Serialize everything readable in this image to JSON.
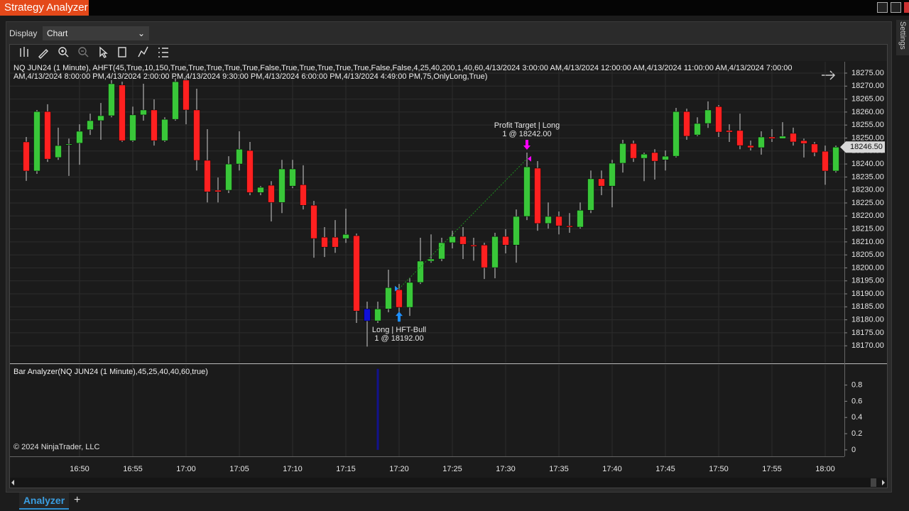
{
  "ui": {
    "window_title": "Strategy Analyzer",
    "display_label": "Display",
    "display_value": "Chart",
    "settings_tab": "Settings",
    "tab_label": "Analyzer",
    "add_tab": "+",
    "copyright": "© 2024 NinjaTrader, LLC"
  },
  "chart_data": {
    "type": "candlestick",
    "title": "NQ JUN24 (1 Minute), AHFT(45,True,10,150,True,True,True,True,True,False,True,True,True,True,True,False,False,4,25,40,200,1,40,60,4/13/2024 3:00:00 AM,4/13/2024 12:00:00 AM,4/13/2024 11:00:00 AM,4/13/2024 7:00:00 AM,4/13/2024 8:00:00 PM,4/13/2024 2:00:00 PM,4/13/2024 9:30:00 PM,4/13/2024 6:00:00 PM,4/13/2024 4:49:00 PM,75,OnlyLong,True)",
    "x": [
      null,
      null,
      null,
      null,
      null,
      "16:50",
      null,
      null,
      null,
      null,
      "16:55",
      null,
      null,
      null,
      null,
      "17:00",
      null,
      null,
      null,
      null,
      "17:05",
      null,
      null,
      null,
      null,
      "17:10",
      null,
      null,
      null,
      null,
      "17:15",
      null,
      null,
      null,
      null,
      "17:20",
      null,
      null,
      null,
      null,
      "17:25",
      null,
      null,
      null,
      null,
      "17:30",
      null,
      null,
      null,
      null,
      "17:35",
      null,
      null,
      null,
      null,
      "17:40",
      null,
      null,
      null,
      null,
      "17:45",
      null,
      null,
      null,
      null,
      "17:50",
      null,
      null,
      null,
      null,
      "17:55",
      null,
      null,
      null,
      null,
      "18:00",
      null
    ],
    "open": [
      18248.5,
      18237.3,
      18260.2,
      18242.5,
      18247.3,
      18248.0,
      18253.2,
      18256.7,
      18258.6,
      18270.4,
      18249.0,
      18258.9,
      18260.8,
      18249.0,
      18257.2,
      18272.3,
      18260.8,
      18241.4,
      18229.9,
      18229.9,
      18240.0,
      18245.2,
      18229.0,
      18231.8,
      18225.2,
      18231.5,
      18232.0,
      18224.1,
      18211.8,
      18211.8,
      18211.3,
      18212.4,
      18184.2,
      18179.6,
      18184.2,
      18191.6,
      18184.8,
      18194.4,
      18202.6,
      18203.4,
      18209.7,
      18212.1,
      18208.8,
      18208.8,
      18200.1,
      18212.1,
      18208.8,
      18219.8,
      18238.4,
      18217.1,
      18219.8,
      18216.2,
      18215.7,
      18222.2,
      18234.3,
      18231.5,
      18240.3,
      18247.9,
      18242.2,
      18244.4,
      18241.6,
      18243.0,
      18260.2,
      18251.2,
      18255.6,
      18262.1,
      18252.9,
      18252.9,
      18247.1,
      18246.3,
      18250.4,
      18249.8,
      18251.8,
      18249.0,
      18247.7,
      18244.9,
      18237.3
    ],
    "high": [
      18250.4,
      18260.8,
      18263.0,
      18254.0,
      18249.8,
      18255.3,
      18259.4,
      18263.5,
      18272.3,
      18271.7,
      18262.1,
      18270.9,
      18264.9,
      18258.0,
      18273.1,
      18273.1,
      18269.0,
      18253.4,
      18234.8,
      18243.0,
      18252.6,
      18248.5,
      18231.5,
      18233.4,
      18241.6,
      18241.6,
      18239.5,
      18225.8,
      18215.7,
      18218.4,
      18222.8,
      18213.2,
      18187.0,
      18187.0,
      18199.3,
      18193.8,
      18196.0,
      18211.6,
      18212.9,
      18211.6,
      18214.3,
      18215.7,
      18211.6,
      18209.7,
      18213.5,
      18214.9,
      18222.5,
      18244.4,
      18241.1,
      18225.2,
      18221.7,
      18221.1,
      18225.2,
      18237.5,
      18237.5,
      18241.6,
      18249.3,
      18249.0,
      18244.4,
      18245.7,
      18245.2,
      18261.6,
      18261.3,
      18258.0,
      18264.1,
      18262.7,
      18255.3,
      18259.4,
      18249.0,
      18252.6,
      18253.4,
      18256.1,
      18254.0,
      18249.8,
      18248.5,
      18247.1,
      18247.1
    ],
    "low": [
      18233.5,
      18236.2,
      18240.8,
      18241.6,
      18235.4,
      18239.7,
      18251.2,
      18249.3,
      18258.0,
      18248.5,
      18248.5,
      18256.7,
      18247.1,
      18248.5,
      18256.7,
      18255.3,
      18237.5,
      18225.2,
      18225.2,
      18228.8,
      18237.5,
      18228.0,
      18228.0,
      18217.9,
      18221.1,
      18230.7,
      18222.5,
      18203.9,
      18204.2,
      18205.8,
      18209.6,
      18178.8,
      18169.7,
      18178.8,
      18182.9,
      18181.5,
      18181.5,
      18193.8,
      18202.0,
      18202.6,
      18207.5,
      18203.4,
      18202.8,
      18195.7,
      18196.0,
      18205.6,
      18202.0,
      18218.4,
      18214.3,
      18215.1,
      18212.9,
      18213.5,
      18215.1,
      18221.1,
      18228.0,
      18223.3,
      18236.7,
      18240.8,
      18233.4,
      18234.0,
      18237.5,
      18242.5,
      18249.3,
      18250.7,
      18253.9,
      18250.4,
      18248.5,
      18245.7,
      18245.2,
      18243.6,
      18248.5,
      18249.8,
      18247.1,
      18242.5,
      18243.0,
      18232.0,
      18236.7
    ],
    "close": [
      18237.3,
      18260.2,
      18241.9,
      18247.1,
      18247.7,
      18252.6,
      18256.7,
      18258.6,
      18270.9,
      18249.0,
      18258.9,
      18260.8,
      18249.0,
      18257.2,
      18271.7,
      18260.8,
      18241.4,
      18229.3,
      18229.3,
      18240.0,
      18245.7,
      18229.0,
      18231.0,
      18225.2,
      18238.1,
      18238.1,
      18224.1,
      18211.3,
      18208.0,
      18208.0,
      18212.9,
      18183.4,
      18179.6,
      18184.2,
      18192.4,
      18184.8,
      18194.4,
      18202.6,
      18203.4,
      18209.7,
      18212.1,
      18209.1,
      18208.3,
      18200.1,
      18212.1,
      18208.8,
      18219.8,
      18238.9,
      18217.1,
      18219.8,
      18216.2,
      18215.7,
      18222.2,
      18234.3,
      18231.5,
      18240.3,
      18247.9,
      18242.2,
      18243.8,
      18241.1,
      18243.0,
      18260.2,
      18250.7,
      18255.6,
      18260.8,
      18252.3,
      18252.3,
      18247.1,
      18246.3,
      18250.4,
      18249.8,
      18250.7,
      18248.5,
      18247.9,
      18244.4,
      18237.3,
      18246.5
    ],
    "bar_colors": [
      "#ff2020",
      "#39c739",
      "#ff2020",
      "#39c739",
      "#39c739",
      "#39c739",
      "#39c739",
      "#39c739",
      "#39c739",
      "#ff2020",
      "#39c739",
      "#39c739",
      "#ff2020",
      "#39c739",
      "#39c739",
      "#ff2020",
      "#ff2020",
      "#ff2020",
      "#ff2020",
      "#39c739",
      "#39c739",
      "#ff2020",
      "#39c739",
      "#ff2020",
      "#39c739",
      "#39c739",
      "#ff2020",
      "#ff2020",
      "#ff2020",
      "#ff2020",
      "#39c739",
      "#ff2020",
      "#1010d8",
      "#39c739",
      "#39c739",
      "#ff2020",
      "#39c739",
      "#39c739",
      "#39c739",
      "#39c739",
      "#39c739",
      "#ff2020",
      "#ff2020",
      "#ff2020",
      "#39c739",
      "#ff2020",
      "#39c739",
      "#39c739",
      "#ff2020",
      "#39c739",
      "#ff2020",
      "#ff2020",
      "#39c739",
      "#39c739",
      "#ff2020",
      "#39c739",
      "#39c739",
      "#ff2020",
      "#39c739",
      "#ff2020",
      "#39c739",
      "#39c739",
      "#ff2020",
      "#39c739",
      "#39c739",
      "#ff2020",
      "#ff2020",
      "#ff2020",
      "#ff2020",
      "#39c739",
      "#ff2020",
      "#39c739",
      "#ff2020",
      "#ff2020",
      "#ff2020",
      "#ff2020",
      "#39c739"
    ],
    "wick_color": "#cfcfcf",
    "ylim": [
      18163.5,
      18279.1
    ],
    "yticks": [
      {
        "value": 18170,
        "label": "18170.00"
      },
      {
        "value": 18175,
        "label": "18175.00"
      },
      {
        "value": 18180,
        "label": "18180.00"
      },
      {
        "value": 18185,
        "label": "18185.00"
      },
      {
        "value": 18190,
        "label": "18190.00"
      },
      {
        "value": 18195,
        "label": "18195.00"
      },
      {
        "value": 18200,
        "label": "18200.00"
      },
      {
        "value": 18205,
        "label": "18205.00"
      },
      {
        "value": 18210,
        "label": "18210.00"
      },
      {
        "value": 18215,
        "label": "18215.00"
      },
      {
        "value": 18220,
        "label": "18220.00"
      },
      {
        "value": 18225,
        "label": "18225.00"
      },
      {
        "value": 18230,
        "label": "18230.00"
      },
      {
        "value": 18235,
        "label": "18235.00"
      },
      {
        "value": 18240,
        "label": "18240.00"
      },
      {
        "value": 18245,
        "label": "18245.00"
      },
      {
        "value": 18250,
        "label": "18250.00"
      },
      {
        "value": 18255,
        "label": "18255.00"
      },
      {
        "value": 18260,
        "label": "18260.00"
      },
      {
        "value": 18265,
        "label": "18265.00"
      },
      {
        "value": 18270,
        "label": "18270.00"
      },
      {
        "value": 18275,
        "label": "18275.00"
      }
    ],
    "grid": true,
    "last_price": {
      "value": 18246.5,
      "label": "18246.50"
    },
    "trade": {
      "entry_name": "Long | HFT-Bull",
      "entry_text": "1 @ 18192.00",
      "entry_price": 18192,
      "entry_x": "17:20",
      "entry_color": "#1e90ff",
      "exit_name": "Profit Target | Long",
      "exit_text": "1 @ 18242.00",
      "exit_price": 18242,
      "exit_color": "#ff00ff",
      "line_color": "#1f8f1f"
    },
    "indicator": {
      "title": "Bar Analyzer(NQ JUN24 (1 Minute),45,25,40,40,60,true)",
      "color": "#12128c",
      "values": [
        0,
        0,
        0,
        0,
        0,
        0,
        0,
        0,
        0,
        0,
        0,
        0,
        0,
        0,
        0,
        0,
        0,
        0,
        0,
        0,
        0,
        0,
        0,
        0,
        0,
        0,
        0,
        0,
        0,
        0,
        0,
        0,
        0,
        1,
        0,
        0,
        0,
        0,
        0,
        0,
        0,
        0,
        0,
        0,
        0,
        0,
        0,
        0,
        0,
        0,
        0,
        0,
        0,
        0,
        0,
        0,
        0,
        0,
        0,
        0,
        0,
        0,
        0,
        0,
        0,
        0,
        0,
        0,
        0,
        0,
        0,
        0,
        0,
        0,
        0,
        0,
        0
      ],
      "ylim": [
        -0.08,
        1.05
      ],
      "yticks": [
        0,
        0.2,
        0.4,
        0.6,
        0.8
      ]
    }
  }
}
